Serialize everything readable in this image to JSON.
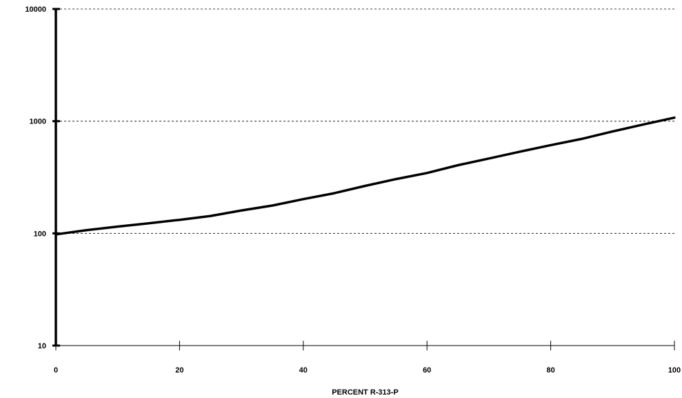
{
  "chart_data": {
    "type": "line",
    "title": "",
    "xlabel": "PERCENT R-313-P",
    "ylabel": "",
    "xlim": [
      0,
      100
    ],
    "ylim": [
      10,
      10000
    ],
    "yscale": "log",
    "grid": "horizontal dashed",
    "x_ticks": [
      0,
      20,
      40,
      60,
      80,
      100
    ],
    "x_tick_labels": [
      "0",
      "20",
      "40",
      "60",
      "80",
      "100"
    ],
    "y_ticks": [
      10,
      100,
      1000,
      10000
    ],
    "y_tick_labels": [
      "10",
      "100",
      "1000",
      "10000"
    ],
    "series": [
      {
        "x": [
          0,
          5,
          10,
          15,
          20,
          25,
          30,
          35,
          40,
          45,
          50,
          55,
          60,
          65,
          70,
          75,
          80,
          85,
          90,
          95,
          100
        ],
        "y": [
          98,
          107,
          115,
          123,
          132,
          143,
          160,
          177,
          202,
          228,
          265,
          305,
          345,
          405,
          465,
          535,
          612,
          695,
          810,
          935,
          1075
        ],
        "color": "#000000"
      }
    ]
  }
}
